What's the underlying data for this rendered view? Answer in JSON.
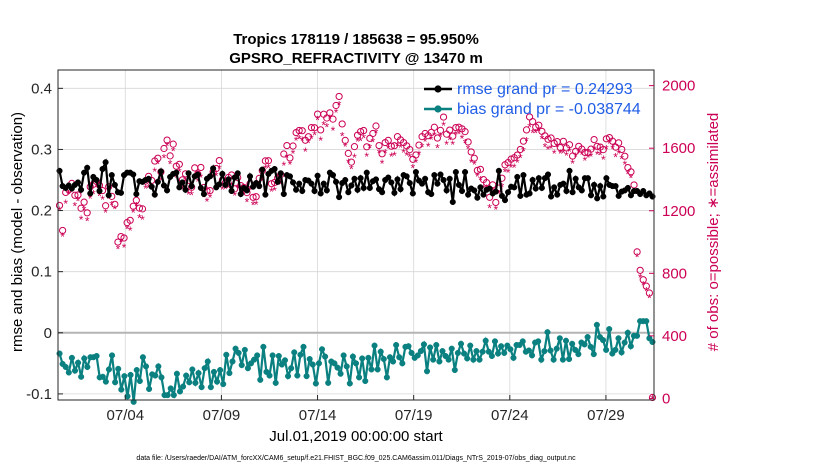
{
  "chart_data": {
    "type": "line",
    "title": "Tropics 178119 / 185638 = 95.950%",
    "subtitle": "GPSRO_REFRACTIVITY @ 13470 m",
    "xlabel": "Jul.01,2019 00:00:00 start",
    "ylabel": "rmse and bias (model - observation)",
    "y2label": "# of obs: o=possible; ∗=assimilated",
    "footer": "data file: /Users/raeder/DAI/ATM_forcXX/CAM6_setup/f.e21.FHIST_BGC.f09_025.CAM6assim.011/Diags_NTrS_2019-07/obs_diag_output.nc",
    "xlim": [
      0.5,
      31.5
    ],
    "ylim": [
      -0.11,
      0.43
    ],
    "y2lim": [
      -10,
      2100
    ],
    "x_ticks": [
      {
        "label": "07/04",
        "value": 4
      },
      {
        "label": "07/09",
        "value": 9
      },
      {
        "label": "07/14",
        "value": 14
      },
      {
        "label": "07/19",
        "value": 19
      },
      {
        "label": "07/24",
        "value": 24
      },
      {
        "label": "07/29",
        "value": 29
      }
    ],
    "y_ticks": [
      {
        "label": "-0.1",
        "value": -0.1
      },
      {
        "label": "0",
        "value": 0
      },
      {
        "label": "0.1",
        "value": 0.1
      },
      {
        "label": "0.2",
        "value": 0.2
      },
      {
        "label": "0.3",
        "value": 0.3
      },
      {
        "label": "0.4",
        "value": 0.4
      }
    ],
    "y2_ticks": [
      {
        "label": "0",
        "value": 0
      },
      {
        "label": "400",
        "value": 400
      },
      {
        "label": "800",
        "value": 800
      },
      {
        "label": "1200",
        "value": 1200
      },
      {
        "label": "1600",
        "value": 1600
      },
      {
        "label": "2000",
        "value": 2000
      }
    ],
    "series": [
      {
        "name": "rmse grand pr = 0.24293",
        "axis": "left",
        "color": "#000000",
        "values": [
          0.265,
          0.24,
          0.237,
          0.241,
          0.236,
          0.242,
          0.246,
          0.234,
          0.262,
          0.27,
          0.228,
          0.255,
          0.25,
          0.232,
          0.268,
          0.279,
          0.225,
          0.258,
          0.242,
          0.23,
          0.229,
          0.258,
          0.262,
          0.262,
          0.259,
          0.227,
          0.248,
          0.247,
          0.25,
          0.252,
          0.239,
          0.226,
          0.247,
          0.264,
          0.241,
          0.233,
          0.255,
          0.26,
          0.262,
          0.238,
          0.246,
          0.234,
          0.261,
          0.24,
          0.256,
          0.259,
          0.237,
          0.227,
          0.252,
          0.256,
          0.269,
          0.238,
          0.243,
          0.26,
          0.242,
          0.251,
          0.232,
          0.254,
          0.261,
          0.227,
          0.237,
          0.233,
          0.256,
          0.239,
          0.245,
          0.24,
          0.267,
          0.226,
          0.26,
          0.265,
          0.268,
          0.247,
          0.261,
          0.227,
          0.258,
          0.256,
          0.246,
          0.234,
          0.244,
          0.232,
          0.25,
          0.249,
          0.244,
          0.232,
          0.257,
          0.228,
          0.244,
          0.233,
          0.262,
          0.258,
          0.247,
          0.222,
          0.245,
          0.25,
          0.23,
          0.241,
          0.252,
          0.234,
          0.253,
          0.237,
          0.262,
          0.237,
          0.248,
          0.251,
          0.235,
          0.23,
          0.25,
          0.254,
          0.246,
          0.229,
          0.251,
          0.235,
          0.258,
          0.256,
          0.245,
          0.228,
          0.263,
          0.249,
          0.244,
          0.252,
          0.23,
          0.227,
          0.258,
          0.244,
          0.259,
          0.25,
          0.233,
          0.252,
          0.214,
          0.263,
          0.242,
          0.232,
          0.263,
          0.226,
          0.236,
          0.233,
          0.221,
          0.238,
          0.226,
          0.234,
          0.236,
          0.228,
          0.231,
          0.265,
          0.224,
          0.217,
          0.23,
          0.239,
          0.238,
          0.255,
          0.224,
          0.258,
          0.226,
          0.228,
          0.25,
          0.236,
          0.253,
          0.237,
          0.253,
          0.259,
          0.223,
          0.238,
          0.226,
          0.242,
          0.244,
          0.232,
          0.265,
          0.23,
          0.252,
          0.238,
          0.233,
          0.253,
          0.253,
          0.225,
          0.242,
          0.22,
          0.24,
          0.223,
          0.253,
          0.242,
          0.24,
          0.24,
          0.224,
          0.231,
          0.233,
          0.237,
          0.225,
          0.232,
          0.232,
          0.227,
          0.232,
          0.225,
          0.228,
          0.223
        ]
      },
      {
        "name": "bias grand pr = -0.038744",
        "axis": "left",
        "color": "#0a8080",
        "values": [
          -0.034,
          -0.051,
          -0.056,
          -0.065,
          -0.041,
          -0.062,
          -0.049,
          -0.072,
          -0.042,
          -0.056,
          -0.04,
          -0.04,
          -0.038,
          -0.073,
          -0.072,
          -0.08,
          -0.06,
          -0.037,
          -0.081,
          -0.059,
          -0.093,
          -0.071,
          -0.104,
          -0.069,
          -0.113,
          -0.061,
          -0.079,
          -0.04,
          -0.055,
          -0.092,
          -0.068,
          -0.07,
          -0.055,
          -0.073,
          -0.102,
          -0.102,
          -0.091,
          -0.102,
          -0.067,
          -0.096,
          -0.088,
          -0.07,
          -0.081,
          -0.06,
          -0.082,
          -0.066,
          -0.089,
          -0.058,
          -0.047,
          -0.089,
          -0.064,
          -0.08,
          -0.061,
          -0.084,
          -0.036,
          -0.066,
          -0.047,
          -0.026,
          -0.033,
          -0.053,
          -0.028,
          -0.058,
          -0.05,
          -0.044,
          -0.037,
          -0.077,
          -0.023,
          -0.064,
          -0.07,
          -0.037,
          -0.082,
          -0.038,
          -0.052,
          -0.045,
          -0.071,
          -0.058,
          -0.032,
          -0.07,
          -0.036,
          -0.023,
          -0.071,
          -0.043,
          -0.052,
          -0.083,
          -0.05,
          -0.027,
          -0.039,
          -0.082,
          -0.047,
          -0.05,
          -0.057,
          -0.067,
          -0.037,
          -0.055,
          -0.083,
          -0.039,
          -0.05,
          -0.073,
          -0.042,
          -0.079,
          -0.041,
          -0.06,
          -0.021,
          -0.06,
          -0.031,
          -0.043,
          -0.073,
          -0.04,
          -0.047,
          -0.02,
          -0.04,
          -0.05,
          -0.023,
          -0.022,
          -0.033,
          -0.041,
          -0.037,
          -0.03,
          -0.019,
          -0.063,
          -0.024,
          -0.044,
          -0.02,
          -0.047,
          -0.03,
          -0.038,
          -0.044,
          -0.026,
          -0.061,
          -0.033,
          -0.018,
          -0.034,
          -0.042,
          -0.021,
          -0.044,
          -0.03,
          -0.044,
          -0.031,
          -0.013,
          -0.031,
          -0.038,
          -0.014,
          -0.034,
          -0.022,
          -0.033,
          -0.021,
          -0.027,
          -0.041,
          -0.02,
          -0.02,
          -0.014,
          -0.031,
          -0.029,
          -0.037,
          -0.016,
          -0.014,
          -0.044,
          -0.03,
          0.001,
          -0.029,
          -0.044,
          -0.026,
          -0.009,
          -0.044,
          -0.013,
          -0.043,
          -0.018,
          -0.028,
          -0.035,
          -0.016,
          -0.019,
          -0.007,
          -0.023,
          -0.035,
          0.013,
          -0.007,
          -0.012,
          -0.028,
          0.006,
          -0.034,
          -0.028,
          -0.009,
          -0.032,
          -0.016,
          0.0,
          -0.022,
          -0.005,
          -0.005,
          0.019,
          0.019,
          0.019,
          -0.009,
          -0.015
        ]
      },
      {
        "name": "possible",
        "axis": "right",
        "color": "#cc0055",
        "marker": "o",
        "values": [
          1234,
          1074,
          1317,
          1334,
          1375,
          1299,
          1301,
          1216,
          1255,
          1187,
          1353,
          1369,
          1388,
          1363,
          1329,
          1232,
          1354,
          1292,
          1241,
          1000,
          1035,
          1026,
          1124,
          1139,
          1229,
          1267,
          1217,
          1212,
          1390,
          1420,
          1394,
          1518,
          1536,
          1448,
          1598,
          1652,
          1551,
          1626,
          1485,
          1497,
          1398,
          1436,
          1356,
          1350,
          1474,
          1435,
          1477,
          1349,
          1326,
          1329,
          1449,
          1470,
          1521,
          1396,
          1379,
          1413,
          1429,
          1340,
          1412,
          1361,
          1349,
          1316,
          1372,
          1286,
          1290,
          1407,
          1456,
          1519,
          1520,
          1373,
          1381,
          1410,
          1431,
          1563,
          1617,
          1538,
          1614,
          1700,
          1713,
          1712,
          1651,
          1673,
          1732,
          1731,
          1818,
          1717,
          1817,
          1793,
          1826,
          1786,
          1873,
          1931,
          1755,
          1650,
          1567,
          1511,
          1610,
          1683,
          1706,
          1713,
          1609,
          1663,
          1694,
          1742,
          1617,
          1564,
          1636,
          1650,
          1613,
          1616,
          1674,
          1653,
          1636,
          1615,
          1591,
          1529,
          1557,
          1620,
          1674,
          1694,
          1680,
          1701,
          1734,
          1665,
          1714,
          1799,
          1690,
          1716,
          1677,
          1732,
          1734,
          1724,
          1706,
          1640,
          1576,
          1536,
          1458,
          1465,
          1399,
          1380,
          1286,
          1366,
          1253,
          1345,
          1408,
          1494,
          1508,
          1530,
          1539,
          1556,
          1592,
          1645,
          1717,
          1800,
          1770,
          1735,
          1747,
          1708,
          1679,
          1657,
          1665,
          1631,
          1642,
          1604,
          1644,
          1602,
          1622,
          1550,
          1580,
          1612,
          1594,
          1573,
          1572,
          1594,
          1655,
          1612,
          1607,
          1591,
          1660,
          1668,
          1645,
          1607,
          1634,
          1592,
          1549,
          1476,
          1449,
          1365,
          937,
          819,
          759,
          718,
          674,
          6
        ]
      },
      {
        "name": "assimilated",
        "axis": "right",
        "color": "#cc0055",
        "marker": "*",
        "values": [
          1207,
          1043,
          1253,
          1313,
          1328,
          1238,
          1270,
          1151,
          1212,
          1140,
          1286,
          1315,
          1362,
          1300,
          1278,
          1196,
          1286,
          1244,
          1217,
          962,
          1007,
          973,
          1091,
          1081,
          1195,
          1236,
          1161,
          1149,
          1348,
          1351,
          1353,
          1459,
          1504,
          1400,
          1544,
          1619,
          1506,
          1589,
          1419,
          1453,
          1343,
          1398,
          1311,
          1308,
          1409,
          1392,
          1419,
          1294,
          1267,
          1292,
          1415,
          1428,
          1476,
          1343,
          1347,
          1352,
          1367,
          1303,
          1354,
          1324,
          1312,
          1263,
          1339,
          1242,
          1246,
          1345,
          1407,
          1476,
          1479,
          1329,
          1335,
          1383,
          1375,
          1496,
          1546,
          1501,
          1571,
          1655,
          1665,
          1656,
          1586,
          1640,
          1667,
          1692,
          1786,
          1657,
          1754,
          1742,
          1797,
          1718,
          1834,
          1882,
          1684,
          1618,
          1516,
          1474,
          1548,
          1648,
          1652,
          1673,
          1552,
          1608,
          1646,
          1704,
          1576,
          1509,
          1577,
          1604,
          1554,
          1561,
          1622,
          1612,
          1578,
          1561,
          1549,
          1479,
          1516,
          1566,
          1613,
          1649,
          1618,
          1662,
          1687,
          1607,
          1680,
          1751,
          1630,
          1660,
          1630,
          1693,
          1696,
          1667,
          1639,
          1601,
          1516,
          1503,
          1426,
          1404,
          1350,
          1348,
          1225,
          1332,
          1216,
          1314,
          1358,
          1455,
          1450,
          1484,
          1482,
          1515,
          1543,
          1587,
          1653,
          1743,
          1702,
          1703,
          1716,
          1665,
          1614,
          1599,
          1604,
          1571,
          1613,
          1572,
          1577,
          1560,
          1584,
          1509,
          1554,
          1580,
          1567,
          1527,
          1546,
          1554,
          1597,
          1567,
          1564,
          1533,
          1602,
          1636,
          1606,
          1550,
          1574,
          1537,
          1502,
          1440,
          1417,
          1314,
          912,
          780,
          731,
          693,
          648,
          2
        ]
      }
    ],
    "zero_line": 0,
    "legend_position": "top-right"
  }
}
